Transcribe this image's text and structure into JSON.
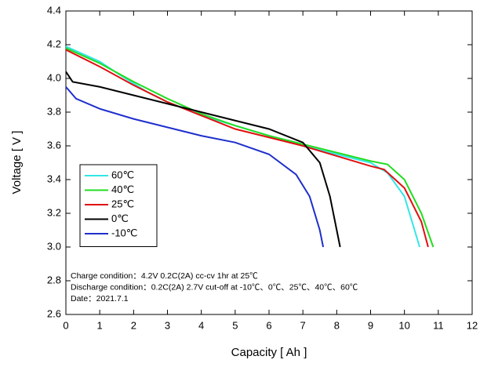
{
  "chart_data": {
    "type": "line",
    "x_label": "Capacity [ Ah ]",
    "y_label": "Voltage [ V ]",
    "xlim": [
      0,
      12
    ],
    "xticks": [
      0,
      1,
      2,
      3,
      4,
      5,
      6,
      7,
      8,
      9,
      10,
      11,
      12
    ],
    "ylim": [
      2.6,
      4.4
    ],
    "yticks": [
      2.6,
      2.8,
      {
        "value": 3,
        "label": "3.0"
      },
      3.2,
      3.4,
      3.6,
      3.8,
      {
        "value": 4,
        "label": "4.0"
      },
      4.2,
      4.4
    ],
    "legend": "lower left",
    "series": [
      {
        "name": "60℃",
        "color": "#33e6e6",
        "x": [
          0,
          1,
          1.6,
          2.4,
          3,
          4,
          5,
          6,
          7,
          8,
          9,
          9.5,
          10,
          10.3,
          10.45
        ],
        "values": [
          4.19,
          4.1,
          4.02,
          3.92,
          3.86,
          3.78,
          3.72,
          3.66,
          3.6,
          3.55,
          3.5,
          3.44,
          3.3,
          3.1,
          3.0
        ]
      },
      {
        "name": "40℃",
        "color": "#22dd22",
        "x": [
          0,
          1,
          2,
          3,
          4,
          5,
          6,
          7,
          8,
          9,
          9.5,
          10,
          10.5,
          10.85
        ],
        "values": [
          4.18,
          4.09,
          3.98,
          3.88,
          3.79,
          3.72,
          3.66,
          3.61,
          3.56,
          3.51,
          3.49,
          3.4,
          3.2,
          3.0
        ]
      },
      {
        "name": "25℃",
        "color": "#e01010",
        "x": [
          0,
          1,
          2,
          3,
          4,
          5,
          6,
          7,
          8,
          9,
          9.4,
          10,
          10.5,
          10.7
        ],
        "values": [
          4.17,
          4.07,
          3.96,
          3.86,
          3.78,
          3.7,
          3.65,
          3.6,
          3.54,
          3.48,
          3.46,
          3.35,
          3.15,
          3.0
        ]
      },
      {
        "name": "0℃",
        "color": "#000000",
        "x": [
          0,
          0.2,
          1,
          2,
          3,
          4,
          5,
          6,
          7,
          7.5,
          7.8,
          8,
          8.1
        ],
        "values": [
          4.04,
          3.98,
          3.95,
          3.9,
          3.85,
          3.8,
          3.75,
          3.7,
          3.62,
          3.5,
          3.3,
          3.1,
          3.0
        ]
      },
      {
        "name": "-10℃",
        "color": "#1f2fcc",
        "x": [
          0,
          0.3,
          1,
          2,
          3,
          4,
          5,
          6,
          6.8,
          7.2,
          7.5,
          7.6
        ],
        "values": [
          3.95,
          3.88,
          3.82,
          3.76,
          3.71,
          3.66,
          3.62,
          3.55,
          3.43,
          3.3,
          3.1,
          3.0
        ]
      }
    ],
    "annotations": [
      "Charge condition：4.2V 0.2C(2A) cc-cv 1hr at 25℃",
      "Discharge condition：0.2C(2A) 2.7V cut-off at -10℃、0℃、25℃、40℃、60℃",
      "Date：2021.7.1"
    ]
  }
}
